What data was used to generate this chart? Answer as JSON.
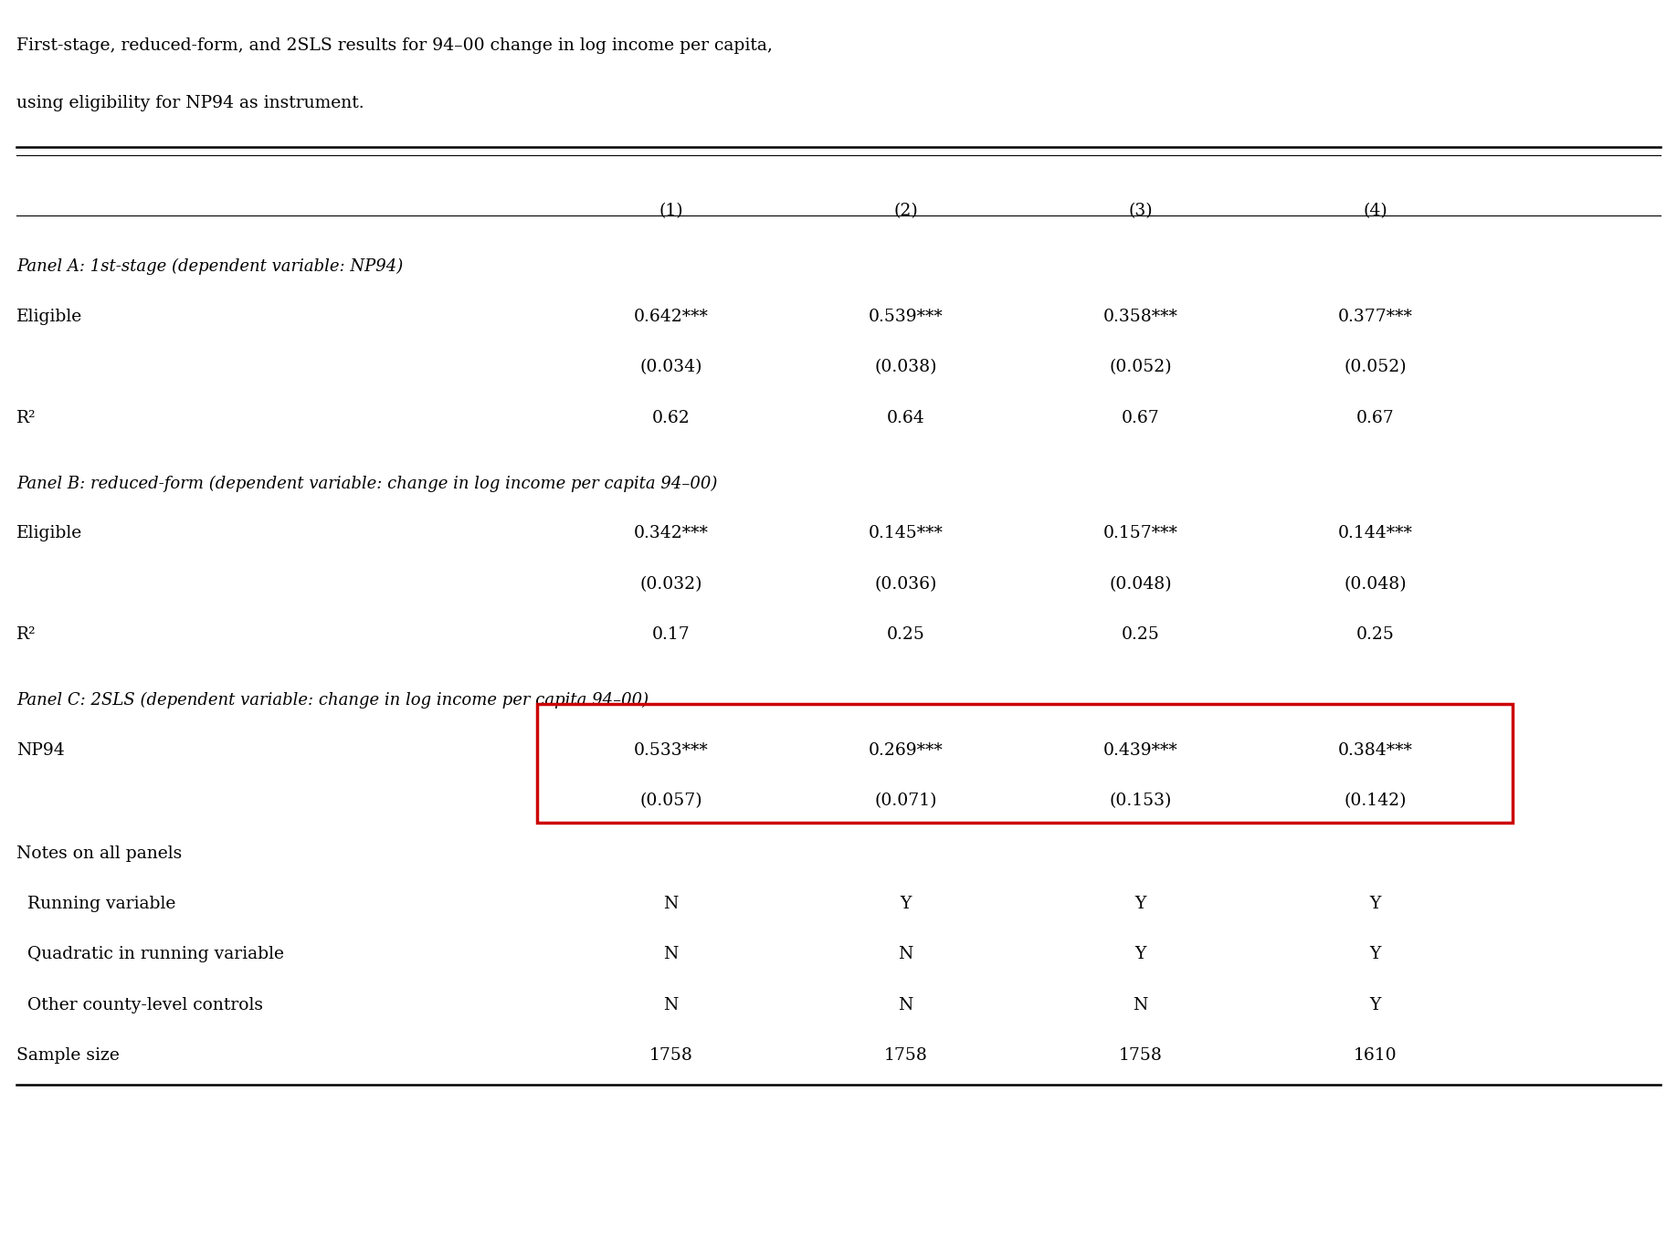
{
  "title_line1": "First-stage, reduced-form, and 2SLS results for 94–00 change in log income per capita,",
  "title_line2": "using eligibility for NP94 as instrument.",
  "columns": [
    "(1)",
    "(2)",
    "(3)",
    "(4)"
  ],
  "panel_a_header": "Panel A: 1st-stage (dependent variable: NP94)",
  "panel_b_header": "Panel B: reduced-form (dependent variable: change in log income per capita 94–00)",
  "panel_c_header": "Panel C: 2SLS (dependent variable: change in log income per capita 94–00)",
  "panel_a": {
    "row_label": "Eligible",
    "coefs": [
      "0.642***",
      "0.539***",
      "0.358***",
      "0.377***"
    ],
    "ses": [
      "(0.034)",
      "(0.038)",
      "(0.052)",
      "(0.052)"
    ],
    "r2_label": "R²",
    "r2_vals": [
      "0.62",
      "0.64",
      "0.67",
      "0.67"
    ]
  },
  "panel_b": {
    "row_label": "Eligible",
    "coefs": [
      "0.342***",
      "0.145***",
      "0.157***",
      "0.144***"
    ],
    "ses": [
      "(0.032)",
      "(0.036)",
      "(0.048)",
      "(0.048)"
    ],
    "r2_label": "R²",
    "r2_vals": [
      "0.17",
      "0.25",
      "0.25",
      "0.25"
    ]
  },
  "panel_c": {
    "row_label": "NP94",
    "coefs": [
      "0.533***",
      "0.269***",
      "0.439***",
      "0.384***"
    ],
    "ses": [
      "(0.057)",
      "(0.071)",
      "(0.153)",
      "(0.142)"
    ]
  },
  "notes_header": "Notes on all panels",
  "notes_rows": [
    {
      "label": "  Running variable",
      "vals": [
        "N",
        "Y",
        "Y",
        "Y"
      ]
    },
    {
      "label": "  Quadratic in running variable",
      "vals": [
        "N",
        "N",
        "Y",
        "Y"
      ]
    },
    {
      "label": "  Other county-level controls",
      "vals": [
        "N",
        "N",
        "N",
        "Y"
      ]
    }
  ],
  "sample_label": "Sample size",
  "sample_vals": [
    "1758",
    "1758",
    "1758",
    "1610"
  ],
  "bg_color": "#ffffff",
  "text_color": "#000000",
  "red_box_color": "#cc0000"
}
